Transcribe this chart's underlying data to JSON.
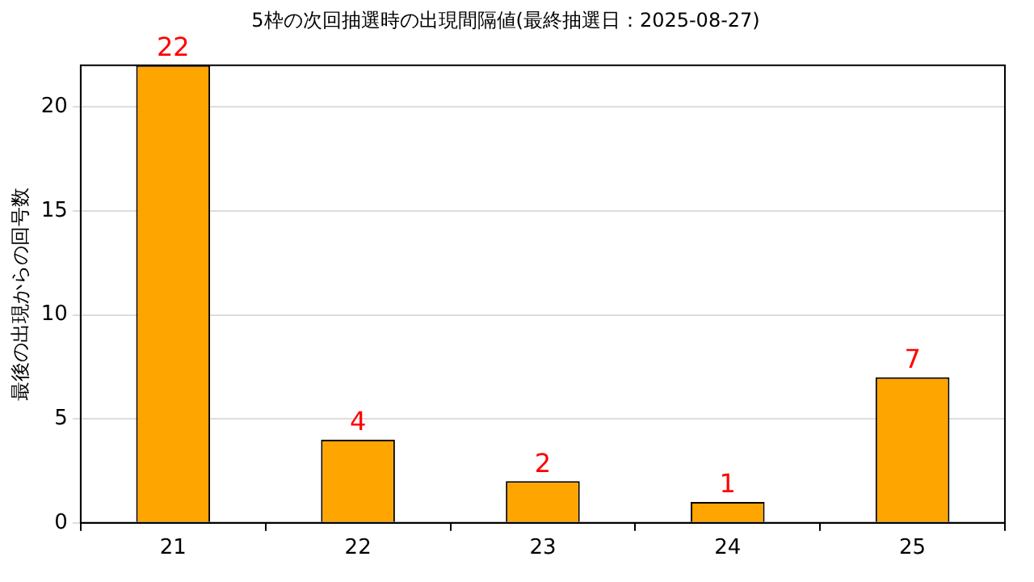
{
  "chart_data": {
    "type": "bar",
    "title": "5枠の次回抽選時の出現間隔値(最終抽選日：2025-08-27)",
    "ylabel": "最後の出現からの回号数",
    "categories": [
      "21",
      "22",
      "23",
      "24",
      "25"
    ],
    "values": [
      22,
      4,
      2,
      1,
      7
    ],
    "color": "#ffa500",
    "ylim": [
      0,
      22
    ],
    "yticks": [
      0,
      5,
      10,
      15,
      20
    ],
    "grid": "y",
    "data_labels": true,
    "legend": false
  }
}
